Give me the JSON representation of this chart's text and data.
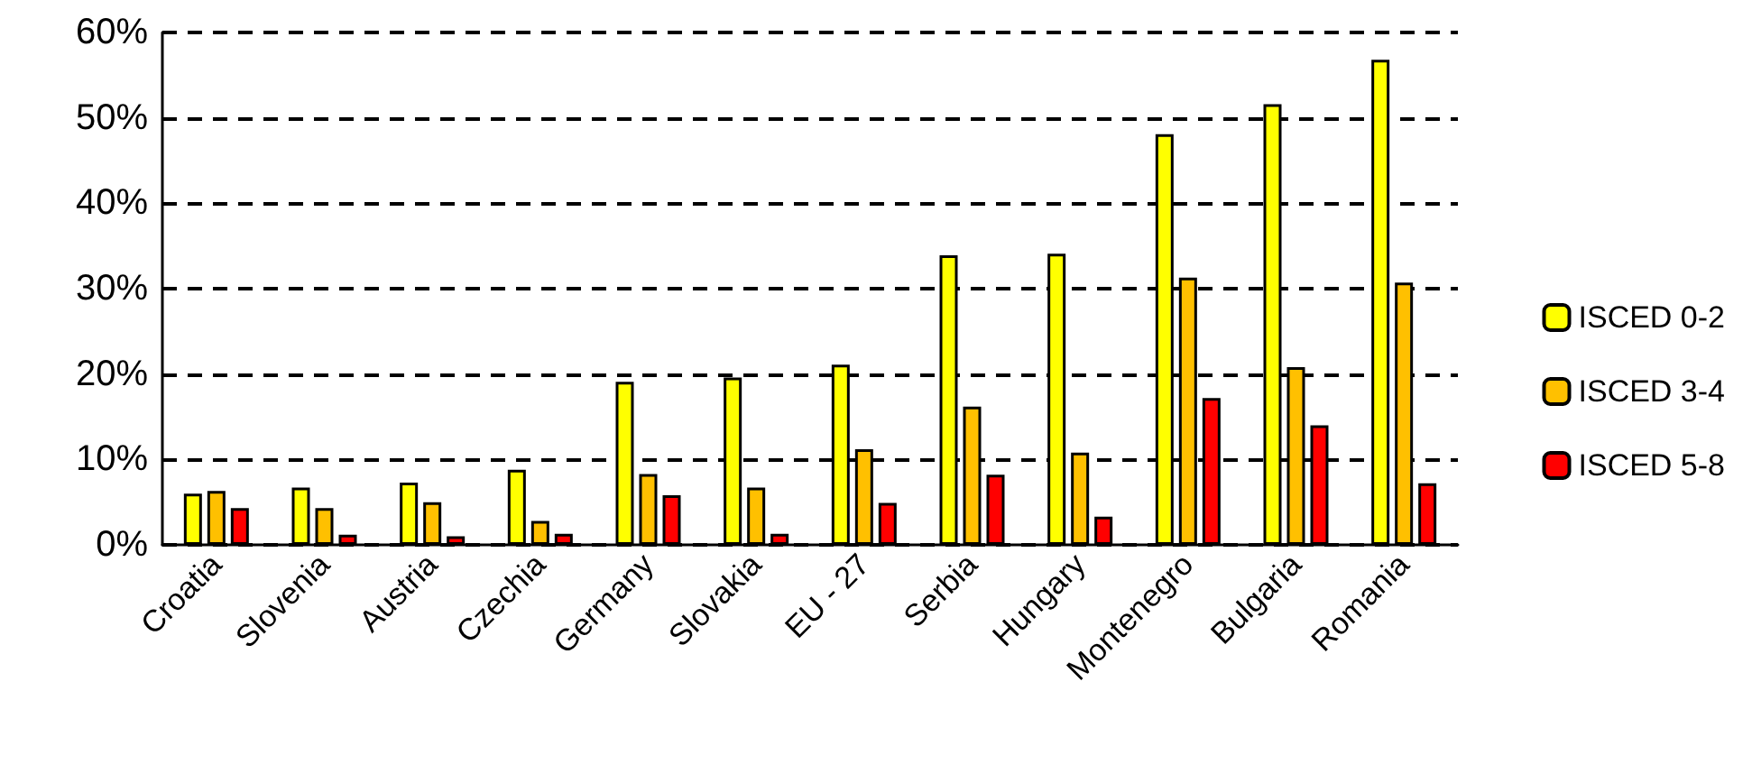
{
  "chart_data": {
    "type": "bar",
    "categories": [
      "Croatia",
      "Slovenia",
      "Austria",
      "Czechia",
      "Germany",
      "Slovakia",
      "EU - 27",
      "Serbia",
      "Hungary",
      "Montenegro",
      "Bulgaria",
      "Romania"
    ],
    "series": [
      {
        "name": "ISCED 0-2",
        "color": "#ffff00",
        "values": [
          6.0,
          6.7,
          7.3,
          8.8,
          19.1,
          19.6,
          21.1,
          33.9,
          34.1,
          48.1,
          51.6,
          56.8
        ]
      },
      {
        "name": "ISCED 3-4",
        "color": "#ffc000",
        "values": [
          6.3,
          4.3,
          5.0,
          2.8,
          8.3,
          6.7,
          11.2,
          16.2,
          10.8,
          31.3,
          20.8,
          30.7
        ]
      },
      {
        "name": "ISCED 5-8",
        "color": "#ff0000",
        "values": [
          4.3,
          1.2,
          1.0,
          1.3,
          5.8,
          1.3,
          4.9,
          8.2,
          3.3,
          17.2,
          14.0,
          7.2
        ]
      }
    ],
    "ylim": [
      0,
      60
    ],
    "yticks": [
      {
        "value": 0,
        "label": "0%"
      },
      {
        "value": 10,
        "label": "10%"
      },
      {
        "value": 20,
        "label": "20%"
      },
      {
        "value": 30,
        "label": "30%"
      },
      {
        "value": 40,
        "label": "40%"
      },
      {
        "value": 50,
        "label": "50%"
      },
      {
        "value": 60,
        "label": "60%"
      }
    ],
    "grid": "y",
    "legend": "right",
    "line_style": "dashed"
  }
}
